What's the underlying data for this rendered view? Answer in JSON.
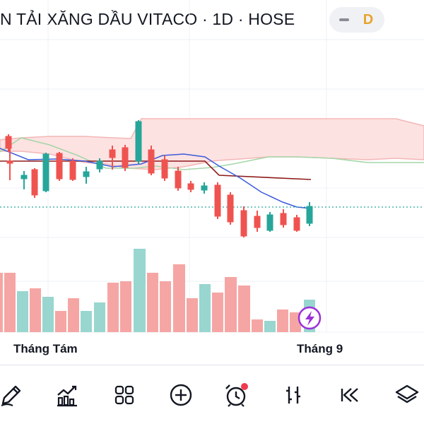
{
  "header": {
    "title": "N TẢI XĂNG DẦU VITACO · 1D · HOSE",
    "mode_badge": "D",
    "collapse_icon": "minus-icon"
  },
  "chart": {
    "x_labels": [
      "Tháng Tám",
      "Tháng 9"
    ],
    "colors": {
      "up": "#26a69a",
      "down": "#ef5350",
      "up_volume": "#99d6d0",
      "down_volume": "#f5a6a4",
      "cloud_fill": "#fde2e2",
      "cloud_line": "#f3b7b5",
      "base_line": "#8e1a1a",
      "conversion_line": "#3b5bdb",
      "lagging_line": "#a5d6a7",
      "price_line": "#26a69a",
      "flash_accent": "#9b30d9"
    }
  },
  "toolbar": {
    "items": [
      {
        "name": "draw-tool",
        "icon": "pencil-icon"
      },
      {
        "name": "indicators-tool",
        "icon": "chart-indicators-icon"
      },
      {
        "name": "layouts-tool",
        "icon": "grid-icon"
      },
      {
        "name": "add-tool",
        "icon": "plus-circle-icon"
      },
      {
        "name": "alert-tool",
        "icon": "alarm-clock-icon"
      },
      {
        "name": "replay-tool",
        "icon": "bar-replay-icon"
      },
      {
        "name": "rewind-tool",
        "icon": "rewind-icon"
      },
      {
        "name": "layers-tool",
        "icon": "layers-icon"
      }
    ]
  }
}
